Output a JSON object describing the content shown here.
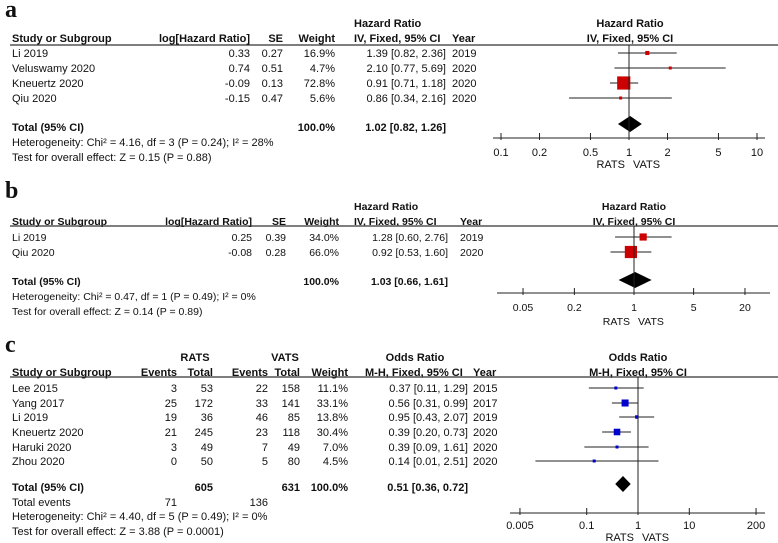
{
  "colors": {
    "hr_marker": "#cc0000",
    "or_marker": "#0000cc",
    "diamond": "#000000",
    "line": "#222222"
  },
  "chart_data": [
    {
      "type": "forest",
      "panel_label": "a",
      "measure": "Hazard Ratio",
      "method": "IV, Fixed, 95% CI",
      "header_top": [
        "Hazard Ratio"
      ],
      "columns": [
        "Study or Subgroup",
        "log[Hazard Ratio]",
        "SE",
        "Weight",
        "IV, Fixed, 95% CI",
        "Year"
      ],
      "studies": [
        {
          "cells": [
            "Li 2019",
            "0.33",
            "0.27",
            "16.9%",
            "1.39 [0.82, 2.36]",
            "2019"
          ],
          "est": 1.39,
          "lo": 0.82,
          "hi": 2.36,
          "weight": 16.9
        },
        {
          "cells": [
            "Veluswamy 2020",
            "0.74",
            "0.51",
            "4.7%",
            "2.10 [0.77, 5.69]",
            "2020"
          ],
          "est": 2.1,
          "lo": 0.77,
          "hi": 5.69,
          "weight": 4.7
        },
        {
          "cells": [
            "Kneuertz 2020",
            "-0.09",
            "0.13",
            "72.8%",
            "0.91 [0.71, 1.18]",
            "2020"
          ],
          "est": 0.91,
          "lo": 0.71,
          "hi": 1.18,
          "weight": 72.8
        },
        {
          "cells": [
            "Qiu 2020",
            "-0.15",
            "0.47",
            "5.6%",
            "0.86 [0.34, 2.16]",
            "2020"
          ],
          "est": 0.86,
          "lo": 0.34,
          "hi": 2.16,
          "weight": 5.6
        }
      ],
      "total": {
        "cells": [
          "Total (95% CI)",
          "",
          "",
          "100.0%",
          "1.02 [0.82, 1.26]",
          ""
        ],
        "est": 1.02,
        "lo": 0.82,
        "hi": 1.26
      },
      "extra_rows": [],
      "footer": [
        "Heterogeneity: Chi² = 4.16, df = 3 (P = 0.24); I² = 28%",
        "Test for overall effect: Z = 0.15 (P = 0.88)"
      ],
      "axis": {
        "scale": "log",
        "xlim": [
          0.1,
          10
        ],
        "ticks": [
          0.1,
          0.2,
          0.5,
          1,
          2,
          5,
          10
        ],
        "tick_labels": [
          "0.1",
          "0.2",
          "0.5",
          "1",
          "2",
          "5",
          "10"
        ]
      },
      "favours": [
        "RATS",
        "VATS"
      ]
    },
    {
      "type": "forest",
      "panel_label": "b",
      "measure": "Hazard Ratio",
      "method": "IV, Fixed, 95% CI",
      "header_top": [
        "Hazard Ratio"
      ],
      "columns": [
        "Study or Subgroup",
        "log[Hazard Ratio]",
        "SE",
        "Weight",
        "IV, Fixed, 95% CI",
        "Year"
      ],
      "studies": [
        {
          "cells": [
            "Li 2019",
            "0.25",
            "0.39",
            "34.0%",
            "1.28 [0.60, 2.76]",
            "2019"
          ],
          "est": 1.28,
          "lo": 0.6,
          "hi": 2.76,
          "weight": 34.0
        },
        {
          "cells": [
            "Qiu 2020",
            "-0.08",
            "0.28",
            "66.0%",
            "0.92 [0.53, 1.60]",
            "2020"
          ],
          "est": 0.92,
          "lo": 0.53,
          "hi": 1.6,
          "weight": 66.0
        }
      ],
      "total": {
        "cells": [
          "Total (95% CI)",
          "",
          "",
          "100.0%",
          "1.03 [0.66, 1.61]",
          ""
        ],
        "est": 1.03,
        "lo": 0.66,
        "hi": 1.61
      },
      "extra_rows": [],
      "footer": [
        "Heterogeneity: Chi² = 0.47, df = 1 (P = 0.49); I² = 0%",
        "Test for overall effect: Z = 0.14 (P = 0.89)"
      ],
      "axis": {
        "scale": "log",
        "xlim": [
          0.05,
          20
        ],
        "ticks": [
          0.05,
          0.2,
          1,
          5,
          20
        ],
        "tick_labels": [
          "0.05",
          "0.2",
          "1",
          "5",
          "20"
        ]
      },
      "favours": [
        "RATS",
        "VATS"
      ]
    },
    {
      "type": "forest",
      "panel_label": "c",
      "measure": "Odds Ratio",
      "method": "M-H, Fixed, 95% CI",
      "header_top": [
        "RATS",
        "VATS",
        "Odds Ratio"
      ],
      "columns": [
        "Study or Subgroup",
        "Events",
        "Total",
        "Events",
        "Total",
        "Weight",
        "M-H, Fixed, 95% CI",
        "Year"
      ],
      "studies": [
        {
          "cells": [
            "Lee 2015",
            "3",
            "53",
            "22",
            "158",
            "11.1%",
            "0.37 [0.11, 1.29]",
            "2015"
          ],
          "est": 0.37,
          "lo": 0.11,
          "hi": 1.29,
          "weight": 11.1
        },
        {
          "cells": [
            "Yang 2017",
            "25",
            "172",
            "33",
            "141",
            "33.1%",
            "0.56 [0.31, 0.99]",
            "2017"
          ],
          "est": 0.56,
          "lo": 0.31,
          "hi": 0.99,
          "weight": 33.1
        },
        {
          "cells": [
            "Li 2019",
            "19",
            "36",
            "46",
            "85",
            "13.8%",
            "0.95 [0.43, 2.07]",
            "2019"
          ],
          "est": 0.95,
          "lo": 0.43,
          "hi": 2.07,
          "weight": 13.8
        },
        {
          "cells": [
            "Kneuertz 2020",
            "21",
            "245",
            "23",
            "118",
            "30.4%",
            "0.39 [0.20, 0.73]",
            "2020"
          ],
          "est": 0.39,
          "lo": 0.2,
          "hi": 0.73,
          "weight": 30.4
        },
        {
          "cells": [
            "Haruki 2020",
            "3",
            "49",
            "7",
            "49",
            "7.0%",
            "0.39 [0.09, 1.61]",
            "2020"
          ],
          "est": 0.39,
          "lo": 0.09,
          "hi": 1.61,
          "weight": 7.0
        },
        {
          "cells": [
            "Zhou 2020",
            "0",
            "50",
            "5",
            "80",
            "4.5%",
            "0.14 [0.01, 2.51]",
            "2020"
          ],
          "est": 0.14,
          "lo": 0.01,
          "hi": 2.51,
          "weight": 4.5
        }
      ],
      "total": {
        "cells": [
          "Total (95% CI)",
          "",
          "605",
          "",
          "631",
          "100.0%",
          "0.51 [0.36, 0.72]",
          ""
        ],
        "est": 0.51,
        "lo": 0.36,
        "hi": 0.72
      },
      "extra_rows": [
        [
          "Total events",
          "71",
          "",
          "136",
          "",
          "",
          "",
          ""
        ]
      ],
      "footer": [
        "Heterogeneity: Chi² = 4.40, df = 5 (P = 0.49); I² = 0%",
        "Test for overall effect: Z = 3.88 (P = 0.0001)"
      ],
      "axis": {
        "scale": "log",
        "xlim": [
          0.005,
          200
        ],
        "ticks": [
          0.005,
          0.1,
          1,
          10,
          200
        ],
        "tick_labels": [
          "0.005",
          "0.1",
          "1",
          "10",
          "200"
        ]
      },
      "favours": [
        "RATS",
        "VATS"
      ]
    }
  ]
}
